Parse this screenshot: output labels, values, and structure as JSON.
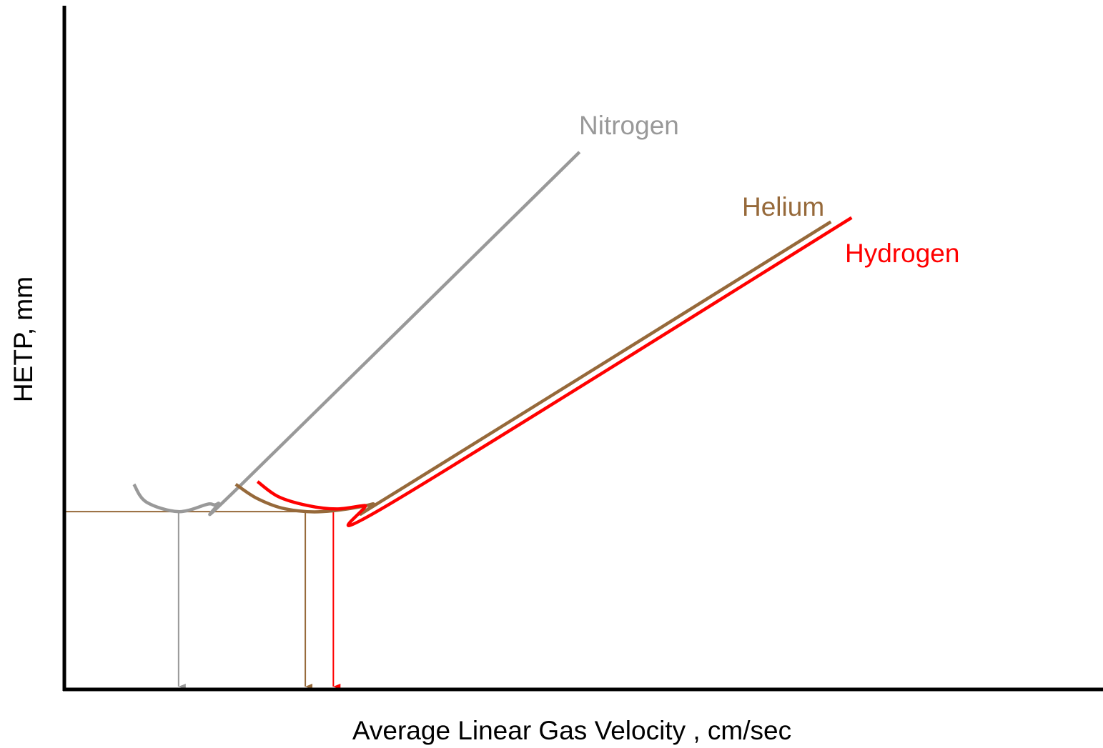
{
  "chart_data": {
    "type": "line",
    "x_label": "Average Linear Gas Velocity , cm/sec",
    "y_label": "HETP, mm",
    "xlim": [
      0,
      100
    ],
    "ylim": [
      0,
      100
    ],
    "optimum_y": 26.0,
    "series": [
      {
        "name": "Nitrogen",
        "color": "#999999",
        "x": [
          6.7,
          7.9,
          11.0,
          13.8,
          14.8,
          17.2,
          49.6
        ],
        "values": [
          30.0,
          27.4,
          26.0,
          27.1,
          27.2,
          30.2,
          78.6
        ],
        "optimum_x": 11.0
      },
      {
        "name": "Helium",
        "color": "#96693a",
        "x": [
          16.5,
          18.6,
          21.3,
          24.8,
          29.6,
          32.3,
          73.8
        ],
        "values": [
          30.0,
          27.9,
          26.4,
          26.0,
          27.1,
          29.2,
          68.4
        ],
        "optimum_x": 23.2
      },
      {
        "name": "Hydrogen",
        "color": "#ff0000",
        "x": [
          18.6,
          20.6,
          23.4,
          26.2,
          28.9,
          31.3,
          75.8
        ],
        "values": [
          30.4,
          28.2,
          26.9,
          26.4,
          26.9,
          27.1,
          69.0
        ],
        "optimum_x": 25.9
      }
    ]
  }
}
